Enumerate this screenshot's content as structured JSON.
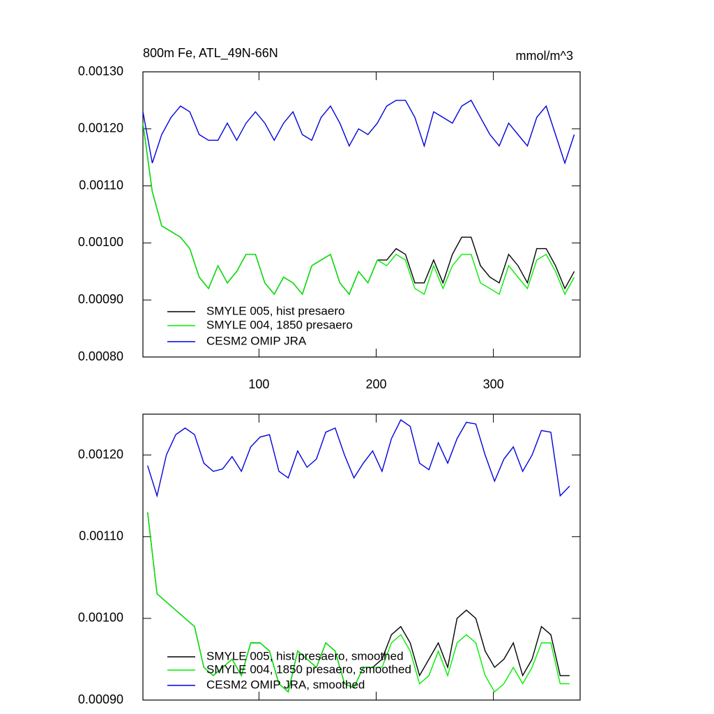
{
  "chart_data": [
    {
      "type": "line",
      "title": "800m Fe, ATL_49N-66N",
      "units": "mmol/m^3",
      "x": [
        1,
        9,
        17,
        25,
        33,
        41,
        49,
        57,
        65,
        73,
        81,
        89,
        97,
        105,
        113,
        121,
        129,
        137,
        145,
        153,
        161,
        169,
        177,
        185,
        193,
        201,
        209,
        217,
        225,
        233,
        241,
        249,
        257,
        265,
        273,
        281,
        289,
        297,
        305,
        313,
        321,
        329,
        337,
        345,
        353,
        361,
        369
      ],
      "series": [
        {
          "name": "SMYLE 005, hist presaero",
          "color": "#000000",
          "values": [
            0.00121,
            0.00109,
            0.00103,
            0.00102,
            0.00101,
            0.00099,
            0.00094,
            0.00092,
            0.00096,
            0.00093,
            0.00095,
            0.00098,
            0.00098,
            0.00093,
            0.00091,
            0.00094,
            0.00093,
            0.00091,
            0.00096,
            0.00097,
            0.00098,
            0.00093,
            0.00091,
            0.00095,
            0.00093,
            0.00097,
            0.00097,
            0.00099,
            0.00098,
            0.00093,
            0.00093,
            0.00097,
            0.00093,
            0.00098,
            0.00101,
            0.00101,
            0.00096,
            0.00094,
            0.00093,
            0.00098,
            0.00096,
            0.00093,
            0.00099,
            0.00099,
            0.00096,
            0.00092,
            0.00095
          ]
        },
        {
          "name": "SMYLE 004, 1850 presaero",
          "color": "#00ee00",
          "values": [
            0.00121,
            0.00109,
            0.00103,
            0.00102,
            0.00101,
            0.00099,
            0.00094,
            0.00092,
            0.00096,
            0.00093,
            0.00095,
            0.00098,
            0.00098,
            0.00093,
            0.00091,
            0.00094,
            0.00093,
            0.00091,
            0.00096,
            0.00097,
            0.00098,
            0.00093,
            0.00091,
            0.00095,
            0.00093,
            0.00097,
            0.00096,
            0.00098,
            0.00097,
            0.00092,
            0.00091,
            0.00096,
            0.00092,
            0.00096,
            0.00098,
            0.00098,
            0.00093,
            0.00092,
            0.00091,
            0.00096,
            0.00094,
            0.00092,
            0.00097,
            0.00098,
            0.00095,
            0.00091,
            0.00094
          ]
        },
        {
          "name": "CESM2 OMIP JRA",
          "color": "#0000dd",
          "values": [
            0.00123,
            0.00114,
            0.00119,
            0.00122,
            0.00124,
            0.00123,
            0.00119,
            0.00118,
            0.00118,
            0.00121,
            0.00118,
            0.00121,
            0.00123,
            0.00121,
            0.00118,
            0.00121,
            0.00123,
            0.00119,
            0.00118,
            0.00122,
            0.00124,
            0.00121,
            0.00117,
            0.0012,
            0.00119,
            0.00121,
            0.00124,
            0.00125,
            0.00125,
            0.00122,
            0.00117,
            0.00123,
            0.00122,
            0.00121,
            0.00124,
            0.00125,
            0.00122,
            0.00119,
            0.00117,
            0.00121,
            0.00119,
            0.00117,
            0.00122,
            0.00124,
            0.00119,
            0.00114,
            0.00119
          ]
        }
      ],
      "xlim": [
        1,
        374
      ],
      "xticks": [
        100,
        200,
        300
      ],
      "ylim": [
        0.0008,
        0.0013
      ],
      "yticks": [
        {
          "value": 0.0008,
          "label": "0.00080"
        },
        {
          "value": 0.0009,
          "label": "0.00090"
        },
        {
          "value": 0.001,
          "label": "0.00100"
        },
        {
          "value": 0.0011,
          "label": "0.00110"
        },
        {
          "value": 0.0012,
          "label": "0.00120"
        },
        {
          "value": 0.0013,
          "label": "0.00130"
        }
      ],
      "legend": "lower left"
    },
    {
      "type": "line",
      "x": [
        5,
        13,
        21,
        29,
        37,
        45,
        53,
        61,
        69,
        77,
        85,
        93,
        101,
        109,
        117,
        125,
        133,
        141,
        149,
        157,
        165,
        173,
        181,
        189,
        197,
        205,
        213,
        221,
        229,
        237,
        245,
        253,
        261,
        269,
        277,
        285,
        293,
        301,
        309,
        317,
        325,
        333,
        341,
        349,
        357,
        365
      ],
      "series": [
        {
          "name": "SMYLE 005, hist presaero, smoothed",
          "color": "#000000",
          "values": [
            0.00113,
            0.00103,
            0.00102,
            0.00101,
            0.001,
            0.00099,
            0.00094,
            0.00093,
            0.00094,
            0.00095,
            0.00093,
            0.00097,
            0.00097,
            0.00096,
            0.00092,
            0.00091,
            0.00096,
            0.00095,
            0.00094,
            0.00097,
            0.00096,
            0.00092,
            0.000915,
            0.00094,
            0.00094,
            0.00095,
            0.00098,
            0.00099,
            0.00097,
            0.00093,
            0.00095,
            0.00097,
            0.00094,
            0.001,
            0.00101,
            0.001,
            0.00096,
            0.00094,
            0.00095,
            0.00097,
            0.00093,
            0.00095,
            0.00099,
            0.00098,
            0.00093,
            0.00093
          ]
        },
        {
          "name": "SMYLE 004, 1850 presaero, smoothed",
          "color": "#00ee00",
          "values": [
            0.00113,
            0.00103,
            0.00102,
            0.00101,
            0.001,
            0.00099,
            0.00094,
            0.00093,
            0.00094,
            0.00095,
            0.00093,
            0.00097,
            0.00097,
            0.00096,
            0.00092,
            0.00091,
            0.00096,
            0.00095,
            0.00094,
            0.00097,
            0.00096,
            0.00092,
            0.000915,
            0.00094,
            0.00094,
            0.00094,
            0.00097,
            0.00098,
            0.00096,
            0.00092,
            0.00093,
            0.00096,
            0.00093,
            0.00097,
            0.00098,
            0.00097,
            0.00093,
            0.00091,
            0.00092,
            0.00094,
            0.00092,
            0.00094,
            0.00097,
            0.00097,
            0.00092,
            0.00092
          ]
        },
        {
          "name": "CESM2 OMIP JRA, smoothed",
          "color": "#0000dd",
          "values": [
            0.001187,
            0.00115,
            0.0012,
            0.001225,
            0.001233,
            0.001225,
            0.00119,
            0.00118,
            0.001183,
            0.001198,
            0.00118,
            0.00121,
            0.001222,
            0.001225,
            0.00118,
            0.001172,
            0.001205,
            0.001185,
            0.001195,
            0.001228,
            0.001233,
            0.0012,
            0.001172,
            0.00119,
            0.001205,
            0.00118,
            0.00122,
            0.001243,
            0.001235,
            0.00119,
            0.001182,
            0.001215,
            0.00119,
            0.00122,
            0.00124,
            0.001238,
            0.0012,
            0.001168,
            0.001195,
            0.00121,
            0.00118,
            0.0012,
            0.00123,
            0.001228,
            0.00115,
            0.001162
          ]
        }
      ],
      "xlim": [
        1,
        374
      ],
      "xticks": [
        100,
        200,
        300
      ],
      "ylim": [
        0.0009,
        0.00125
      ],
      "yticks": [
        {
          "value": 0.0009,
          "label": "0.00090"
        },
        {
          "value": 0.001,
          "label": "0.00100"
        },
        {
          "value": 0.0011,
          "label": "0.00110"
        },
        {
          "value": 0.0012,
          "label": "0.00120"
        }
      ],
      "legend": "lower left"
    }
  ]
}
